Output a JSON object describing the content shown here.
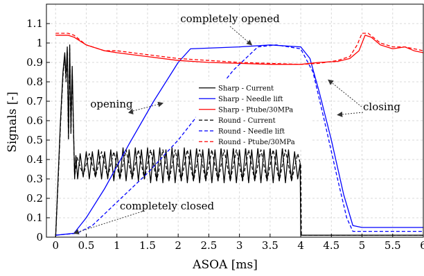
{
  "chart_data": {
    "type": "line",
    "xlabel": "ASOA [ms]",
    "ylabel": "Signals [-]",
    "xlim": [
      -0.15,
      6.0
    ],
    "ylim": [
      0,
      1.2
    ],
    "grid": true,
    "legend_placement": "center-right",
    "x_ticks": [
      "0",
      "0.5",
      "1",
      "1.5",
      "2",
      "2.5",
      "3",
      "3.5",
      "4",
      "4.5",
      "5",
      "5.5",
      "6"
    ],
    "y_ticks": [
      "0",
      "0.1",
      "0.2",
      "0.3",
      "0.4",
      "0.5",
      "0.6",
      "0.7",
      "0.8",
      "0.9",
      "1",
      "1.1"
    ],
    "series": [
      {
        "name": "Sharp - Current",
        "color": "#000000",
        "dash": "solid",
        "x": [
          0,
          0.04,
          0.08,
          0.12,
          0.15,
          0.17,
          0.19,
          0.21,
          0.23,
          0.25,
          0.27,
          0.29,
          0.31,
          0.33,
          0.36,
          0.4,
          0.45,
          0.5,
          0.55,
          0.6,
          0.65,
          0.7,
          0.75,
          0.8,
          0.85,
          0.9,
          0.95,
          1.0,
          1.05,
          1.1,
          1.15,
          1.2,
          1.25,
          1.3,
          1.35,
          1.4,
          1.45,
          1.5,
          1.55,
          1.6,
          1.65,
          1.7,
          1.75,
          1.8,
          1.85,
          1.9,
          1.95,
          2.0,
          2.05,
          2.1,
          2.15,
          2.2,
          2.25,
          2.3,
          2.35,
          2.4,
          2.45,
          2.5,
          2.55,
          2.6,
          2.65,
          2.7,
          2.75,
          2.8,
          2.85,
          2.9,
          2.95,
          3.0,
          3.05,
          3.1,
          3.15,
          3.2,
          3.25,
          3.3,
          3.35,
          3.4,
          3.45,
          3.5,
          3.55,
          3.6,
          3.65,
          3.7,
          3.75,
          3.8,
          3.85,
          3.9,
          3.95,
          3.99,
          4.0,
          4.01,
          4.5,
          5.0,
          5.5,
          6.0
        ],
        "y": [
          0,
          0.3,
          0.6,
          0.85,
          0.95,
          0.82,
          0.98,
          0.52,
          0.99,
          0.55,
          0.88,
          0.6,
          0.3,
          0.42,
          0.3,
          0.43,
          0.31,
          0.44,
          0.3,
          0.44,
          0.31,
          0.45,
          0.3,
          0.44,
          0.3,
          0.45,
          0.29,
          0.44,
          0.3,
          0.46,
          0.29,
          0.45,
          0.3,
          0.46,
          0.29,
          0.45,
          0.3,
          0.46,
          0.28,
          0.45,
          0.29,
          0.46,
          0.28,
          0.45,
          0.29,
          0.46,
          0.28,
          0.45,
          0.29,
          0.46,
          0.28,
          0.45,
          0.29,
          0.46,
          0.28,
          0.45,
          0.29,
          0.46,
          0.28,
          0.45,
          0.29,
          0.46,
          0.28,
          0.45,
          0.29,
          0.46,
          0.28,
          0.45,
          0.29,
          0.46,
          0.28,
          0.45,
          0.29,
          0.46,
          0.28,
          0.45,
          0.29,
          0.46,
          0.28,
          0.45,
          0.29,
          0.46,
          0.28,
          0.45,
          0.29,
          0.44,
          0.3,
          0.38,
          0.01,
          0.01,
          0.01,
          0.01,
          0.01,
          0.01
        ]
      },
      {
        "name": "Sharp - Needle lift",
        "color": "#0000ff",
        "dash": "solid",
        "x": [
          0,
          0.3,
          0.5,
          0.8,
          1.2,
          1.6,
          2.0,
          2.2,
          3.0,
          3.5,
          4.0,
          4.15,
          4.3,
          4.5,
          4.7,
          4.85,
          5.0,
          5.5,
          6.0
        ],
        "y": [
          0.01,
          0.02,
          0.1,
          0.25,
          0.48,
          0.7,
          0.9,
          0.97,
          0.98,
          0.99,
          0.98,
          0.92,
          0.75,
          0.5,
          0.22,
          0.06,
          0.05,
          0.05,
          0.05
        ]
      },
      {
        "name": "Sharp - Ptube/30MPa",
        "color": "#ff0000",
        "dash": "solid",
        "x": [
          0,
          0.2,
          0.3,
          0.5,
          0.8,
          1.0,
          1.5,
          2.0,
          2.5,
          3.0,
          3.5,
          4.0,
          4.3,
          4.6,
          4.8,
          4.95,
          5.05,
          5.15,
          5.3,
          5.5,
          5.7,
          5.85,
          6.0
        ],
        "y": [
          1.04,
          1.04,
          1.03,
          0.99,
          0.96,
          0.95,
          0.93,
          0.91,
          0.9,
          0.895,
          0.89,
          0.89,
          0.9,
          0.905,
          0.92,
          0.96,
          1.04,
          1.03,
          0.99,
          0.97,
          0.98,
          0.96,
          0.95
        ]
      },
      {
        "name": "Round - Current",
        "color": "#000000",
        "dash": "dashed",
        "x": [
          0,
          0.04,
          0.08,
          0.12,
          0.15,
          0.17,
          0.19,
          0.21,
          0.23,
          0.25,
          0.27,
          0.29,
          0.31,
          0.35,
          0.45,
          0.55,
          0.65,
          0.75,
          0.85,
          0.95,
          1.05,
          1.15,
          1.25,
          1.35,
          1.45,
          1.55,
          1.65,
          1.75,
          1.85,
          1.95,
          2.05,
          2.15,
          2.25,
          2.35,
          2.45,
          2.55,
          2.65,
          2.75,
          2.85,
          2.95,
          3.05,
          3.15,
          3.25,
          3.35,
          3.45,
          3.55,
          3.65,
          3.75,
          3.85,
          3.95,
          4.0,
          4.01,
          4.5,
          5.0,
          5.5,
          6.0
        ],
        "y": [
          0,
          0.28,
          0.58,
          0.83,
          0.93,
          0.8,
          0.96,
          0.5,
          0.97,
          0.53,
          0.86,
          0.58,
          0.31,
          0.41,
          0.32,
          0.43,
          0.31,
          0.44,
          0.31,
          0.44,
          0.3,
          0.45,
          0.3,
          0.45,
          0.3,
          0.45,
          0.29,
          0.45,
          0.29,
          0.45,
          0.29,
          0.45,
          0.29,
          0.45,
          0.29,
          0.45,
          0.29,
          0.45,
          0.29,
          0.45,
          0.29,
          0.45,
          0.29,
          0.45,
          0.29,
          0.45,
          0.29,
          0.45,
          0.29,
          0.43,
          0.37,
          0.01,
          0.01,
          0.01,
          0.01,
          0.01
        ]
      },
      {
        "name": "Round - Needle lift",
        "color": "#0000ff",
        "dash": "dashed",
        "x": [
          0,
          0.35,
          0.6,
          1.0,
          1.5,
          2.0,
          2.5,
          2.9,
          3.3,
          3.6,
          4.0,
          4.2,
          4.4,
          4.6,
          4.75,
          4.85,
          5.0,
          5.5,
          6.0
        ],
        "y": [
          0.01,
          0.02,
          0.06,
          0.18,
          0.33,
          0.5,
          0.7,
          0.86,
          0.98,
          0.99,
          0.97,
          0.85,
          0.58,
          0.3,
          0.1,
          0.03,
          0.03,
          0.03,
          0.03
        ]
      },
      {
        "name": "Round - Ptube/30MPa",
        "color": "#ff0000",
        "dash": "dashed",
        "x": [
          0,
          0.2,
          0.3,
          0.5,
          0.8,
          1.0,
          1.5,
          2.0,
          2.5,
          3.0,
          3.5,
          4.0,
          4.3,
          4.6,
          4.8,
          4.92,
          5.0,
          5.1,
          5.3,
          5.5,
          5.7,
          5.85,
          6.0
        ],
        "y": [
          1.05,
          1.05,
          1.04,
          0.99,
          0.96,
          0.96,
          0.94,
          0.92,
          0.91,
          0.9,
          0.895,
          0.89,
          0.895,
          0.91,
          0.93,
          0.99,
          1.05,
          1.05,
          1.0,
          0.98,
          0.98,
          0.97,
          0.96
        ]
      }
    ],
    "annotations": [
      {
        "text": "completely opened",
        "arrow_target": [
          3.2,
          0.99
        ]
      },
      {
        "text": "opening",
        "arrow_targets": [
          [
            1.25,
            0.66
          ],
          [
            1.75,
            0.69
          ]
        ]
      },
      {
        "text": "closing",
        "arrow_targets": [
          [
            4.45,
            0.81
          ],
          [
            4.6,
            0.63
          ]
        ]
      },
      {
        "text": "completely closed",
        "arrow_target": [
          0.3,
          0.02
        ]
      }
    ]
  }
}
